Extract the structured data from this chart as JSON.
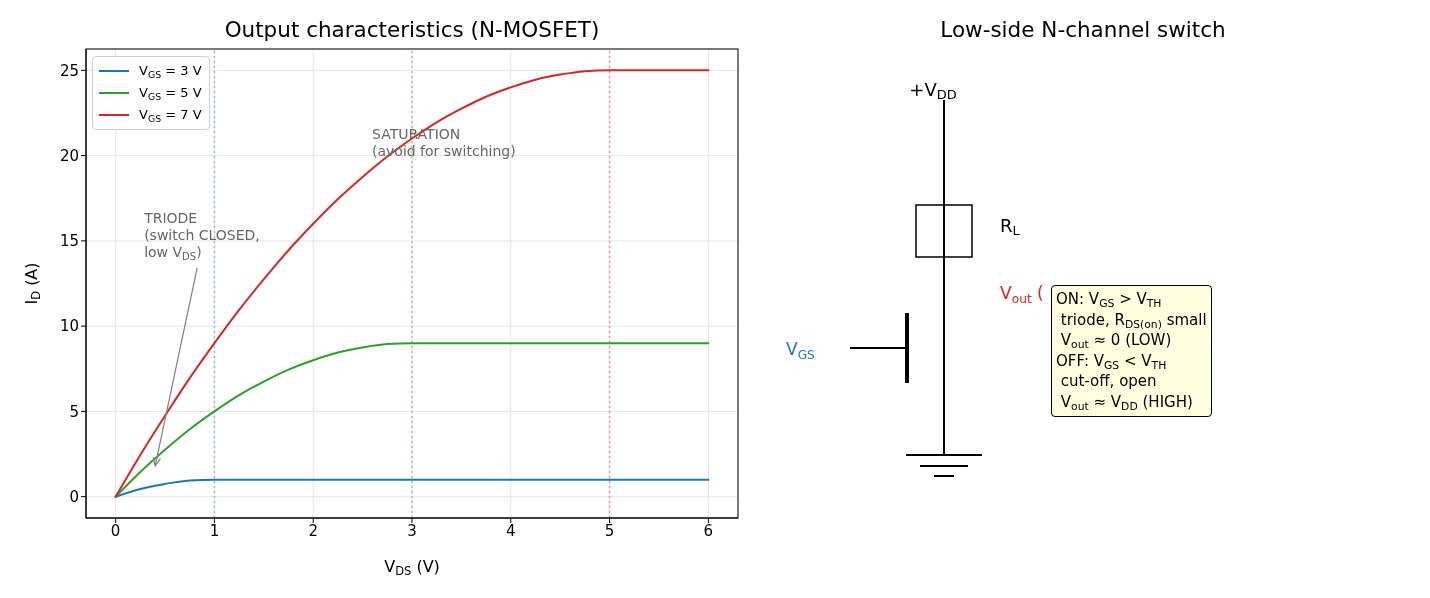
{
  "chart_data": [
    {
      "type": "line",
      "title": "Output characteristics (N-MOSFET)",
      "xlabel": "V$_{DS}$ (V)",
      "ylabel": "I$_{D}$ (A)",
      "series": [
        {
          "name": "V$_{GS}$ = 3 V",
          "color": "#1f77b4",
          "x": [
            0,
            0.25,
            0.5,
            0.75,
            1,
            6
          ],
          "values": [
            0,
            0.45,
            0.75,
            0.95,
            1,
            1
          ]
        },
        {
          "name": "V$_{GS}$ = 5 V",
          "color": "#2ca02c",
          "x": [
            0,
            0.25,
            0.5,
            0.75,
            1,
            1.25,
            1.5,
            1.75,
            2,
            2.25,
            2.5,
            2.75,
            3,
            6
          ],
          "values": [
            0,
            1.45,
            2.75,
            3.95,
            5,
            5.95,
            6.75,
            7.45,
            8,
            8.45,
            8.75,
            8.95,
            9,
            9
          ]
        },
        {
          "name": "V$_{GS}$ = 7 V",
          "color": "#d62728",
          "x": [
            0,
            0.25,
            0.5,
            0.75,
            1,
            1.25,
            1.5,
            1.75,
            2,
            2.25,
            2.5,
            2.75,
            3,
            3.25,
            3.5,
            3.75,
            4,
            4.25,
            4.5,
            4.75,
            5,
            6
          ],
          "values": [
            0,
            2.45,
            4.75,
            6.95,
            9,
            10.95,
            12.75,
            14.45,
            16,
            17.45,
            18.75,
            19.95,
            21,
            21.95,
            22.75,
            23.45,
            24,
            24.45,
            24.75,
            24.95,
            25,
            25
          ]
        }
      ],
      "xlim": [
        -0.3,
        6.3
      ],
      "xticks": [
        0,
        1,
        2,
        3,
        4,
        5,
        6
      ],
      "ylim": [
        -1.25,
        26.25
      ],
      "yticks": [
        0,
        5,
        10,
        15,
        20,
        25
      ],
      "grid": true,
      "legend": "top left",
      "line_style": "solid",
      "ref_lines": [
        {
          "axis": "x",
          "value": 1,
          "color": "#8fbcdb",
          "line_style": "dotted"
        },
        {
          "axis": "x",
          "value": 3,
          "color": "#95cf95",
          "line_style": "dotted"
        },
        {
          "axis": "x",
          "value": 5,
          "color": "#ea9394",
          "line_style": "dotted"
        }
      ],
      "annotations": [
        {
          "text": "TRIODE\n(switch CLOSED,\nlow V$_{DS}$)",
          "x": 0.4,
          "y": 1.8
        },
        "SATURATION\n(avoid for switching)"
      ]
    },
    {
      "type": "other",
      "title": "Low-side N-channel switch",
      "annotations": [
        "+V$_{DD}$",
        "R$_{L}$",
        "V$_{out}$ (",
        "V$_{GS}$",
        "ON: V$_{GS}$ > V$_{TH}$\n triode, R$_{DS(on)}$ small\n V$_{out}$ ≈ 0 (LOW)\nOFF: V$_{GS}$ < V$_{TH}$\n cut-off, open\n V$_{out}$ ≈ V$_{DD}$ (HIGH)"
      ]
    }
  ]
}
